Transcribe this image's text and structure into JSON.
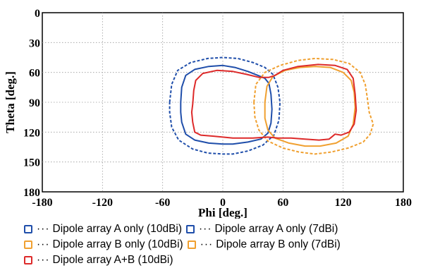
{
  "chart_data": {
    "type": "line",
    "xlabel": "Phi [deg.]",
    "ylabel": "Theta [deg.]",
    "xlim": [
      -180,
      180
    ],
    "ylim": [
      0,
      180
    ],
    "y_inverted": true,
    "xticks": [
      "-180",
      "-120",
      "-60",
      "0",
      "60",
      "120",
      "180"
    ],
    "yticks": [
      "0",
      "30",
      "60",
      "90",
      "120",
      "150",
      "180"
    ],
    "xtick_values": [
      -180,
      -120,
      -60,
      0,
      60,
      120,
      180
    ],
    "ytick_values": [
      0,
      30,
      60,
      90,
      120,
      150,
      180
    ],
    "grid": true,
    "legend_position": "bottom",
    "series": [
      {
        "name": "Dipole array A only (10dBi)",
        "color": "#1f4eaa",
        "style": "solid",
        "points": [
          [
            -42,
            90
          ],
          [
            -41,
            75
          ],
          [
            -37,
            63
          ],
          [
            -28,
            57
          ],
          [
            -14,
            54
          ],
          [
            0,
            53
          ],
          [
            12,
            55
          ],
          [
            25,
            59
          ],
          [
            35,
            63
          ],
          [
            42,
            66
          ],
          [
            46,
            71
          ],
          [
            48,
            82
          ],
          [
            49,
            97
          ],
          [
            48,
            111
          ],
          [
            45,
            121
          ],
          [
            38,
            127
          ],
          [
            25,
            130
          ],
          [
            10,
            132
          ],
          [
            0,
            132
          ],
          [
            -14,
            131
          ],
          [
            -28,
            128
          ],
          [
            -37,
            122
          ],
          [
            -41,
            110
          ],
          [
            -42,
            100
          ],
          [
            -42,
            90
          ]
        ]
      },
      {
        "name": "Dipole array A only (7dBi)",
        "color": "#1f4eaa",
        "style": "dashed",
        "points": [
          [
            -53,
            90
          ],
          [
            -51,
            72
          ],
          [
            -45,
            58
          ],
          [
            -32,
            50
          ],
          [
            -15,
            46
          ],
          [
            0,
            45
          ],
          [
            15,
            46
          ],
          [
            30,
            50
          ],
          [
            42,
            55
          ],
          [
            50,
            62
          ],
          [
            55,
            75
          ],
          [
            57,
            90
          ],
          [
            56,
            108
          ],
          [
            51,
            123
          ],
          [
            40,
            133
          ],
          [
            25,
            139
          ],
          [
            10,
            142
          ],
          [
            0,
            142
          ],
          [
            -15,
            141
          ],
          [
            -30,
            137
          ],
          [
            -44,
            128
          ],
          [
            -51,
            115
          ],
          [
            -53,
            100
          ],
          [
            -53,
            90
          ]
        ]
      },
      {
        "name": "Dipole array B only (10dBi)",
        "color": "#f0a030",
        "style": "solid",
        "points": [
          [
            42,
            90
          ],
          [
            44,
            74
          ],
          [
            50,
            64
          ],
          [
            62,
            58
          ],
          [
            77,
            55
          ],
          [
            92,
            54
          ],
          [
            107,
            55
          ],
          [
            120,
            60
          ],
          [
            128,
            68
          ],
          [
            131,
            80
          ],
          [
            132,
            95
          ],
          [
            130,
            112
          ],
          [
            125,
            124
          ],
          [
            113,
            131
          ],
          [
            97,
            134
          ],
          [
            82,
            134
          ],
          [
            66,
            131
          ],
          [
            52,
            126
          ],
          [
            45,
            118
          ],
          [
            42,
            106
          ],
          [
            42,
            90
          ]
        ]
      },
      {
        "name": "Dipole array B only (7dBi)",
        "color": "#f0a030",
        "style": "dashed",
        "points": [
          [
            31,
            90
          ],
          [
            33,
            72
          ],
          [
            42,
            60
          ],
          [
            57,
            53
          ],
          [
            75,
            48
          ],
          [
            92,
            46
          ],
          [
            110,
            47
          ],
          [
            126,
            51
          ],
          [
            137,
            60
          ],
          [
            142,
            72
          ],
          [
            144,
            85
          ],
          [
            146,
            100
          ],
          [
            150,
            112
          ],
          [
            147,
            122
          ],
          [
            140,
            130
          ],
          [
            125,
            136
          ],
          [
            108,
            140
          ],
          [
            92,
            142
          ],
          [
            76,
            140
          ],
          [
            60,
            136
          ],
          [
            45,
            129
          ],
          [
            36,
            118
          ],
          [
            32,
            105
          ],
          [
            31,
            90
          ]
        ]
      },
      {
        "name": "Dipole array A+B (10dBi)",
        "color": "#dd2a2a",
        "style": "solid",
        "points": [
          [
            -30,
            92
          ],
          [
            -29,
            78
          ],
          [
            -27,
            68
          ],
          [
            -20,
            61
          ],
          [
            -6,
            58
          ],
          [
            10,
            59
          ],
          [
            24,
            62
          ],
          [
            36,
            65
          ],
          [
            46,
            65
          ],
          [
            52,
            63
          ],
          [
            60,
            58
          ],
          [
            75,
            54
          ],
          [
            95,
            52
          ],
          [
            112,
            53
          ],
          [
            124,
            57
          ],
          [
            130,
            66
          ],
          [
            132,
            82
          ],
          [
            133,
            98
          ],
          [
            131,
            112
          ],
          [
            126,
            120
          ],
          [
            118,
            123
          ],
          [
            112,
            122
          ],
          [
            106,
            127
          ],
          [
            96,
            128
          ],
          [
            82,
            127
          ],
          [
            68,
            126
          ],
          [
            55,
            126
          ],
          [
            45,
            125
          ],
          [
            30,
            126
          ],
          [
            10,
            126
          ],
          [
            -10,
            124
          ],
          [
            -22,
            123
          ],
          [
            -28,
            120
          ],
          [
            -30,
            110
          ],
          [
            -31,
            100
          ],
          [
            -30,
            92
          ]
        ]
      }
    ]
  },
  "legend": [
    [
      {
        "label": "Dipole array A only (10dBi)",
        "color": "#1f4eaa",
        "style": "solid"
      },
      {
        "label": "Dipole array A only (7dBi)",
        "color": "#1f4eaa",
        "style": "dash"
      }
    ],
    [
      {
        "label": "Dipole array B only (10dBi)",
        "color": "#f0a030",
        "style": "solid"
      },
      {
        "label": "Dipole array B only (7dBi)",
        "color": "#f0a030",
        "style": "dash"
      }
    ],
    [
      {
        "label": "Dipole array A+B (10dBi)",
        "color": "#dd2a2a",
        "style": "solid"
      }
    ]
  ],
  "legend_dots": "···"
}
